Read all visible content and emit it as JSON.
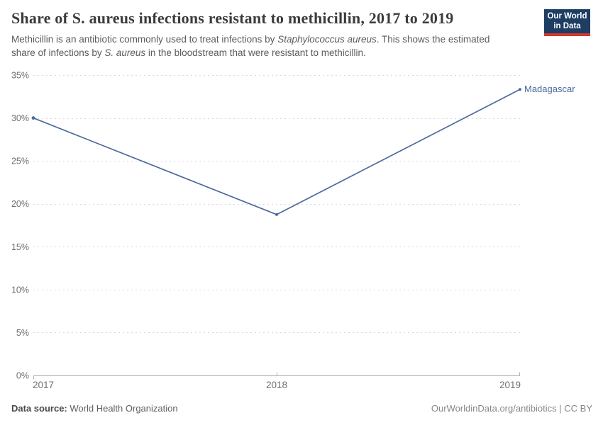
{
  "header": {
    "title": "Share of S. aureus infections resistant to methicillin, 2017 to 2019",
    "subtitle": {
      "part1": "Methicillin is an antibiotic commonly used to treat infections by ",
      "italic1": "Staphylococcus aureus",
      "part2": ". This shows the estimated share of infections by ",
      "italic2": "S. aureus",
      "part3": " in the bloodstream that were resistant to methicillin."
    },
    "logo": {
      "line1": "Our World",
      "line2": "in Data"
    }
  },
  "chart_data": {
    "type": "line",
    "title": "Share of S. aureus infections resistant to methicillin, 2017 to 2019",
    "x": [
      2017,
      2018,
      2019
    ],
    "xtick_labels": [
      "2017",
      "2018",
      "2019"
    ],
    "series": [
      {
        "name": "Madagascar",
        "color": "#4c6a9c",
        "values": [
          30,
          18.75,
          33.33
        ]
      }
    ],
    "xlabel": "",
    "ylabel": "",
    "ylim": [
      0,
      35
    ],
    "ytick_step": 5,
    "ytick_labels": [
      "0%",
      "5%",
      "10%",
      "15%",
      "20%",
      "25%",
      "30%",
      "35%"
    ],
    "grid": "horizontal-dashed",
    "legend_position": "end-of-line-label"
  },
  "footer": {
    "source_label": "Data source:",
    "source_value": "World Health Organization",
    "credit": "OurWorldinData.org/antibiotics | CC BY"
  },
  "colors": {
    "line": "#4c6a9c",
    "series_label": "#4c6a9c",
    "grid": "#d9d9d9",
    "axis": "#b3b3b3",
    "title_text": "#3b3b3b",
    "subtitle_text": "#5b5b5b",
    "tick_text": "#6e6e6e",
    "footer_text": "#5f5f5f",
    "credit_text": "#878787",
    "logo_bg": "#1d3d63",
    "logo_stripe": "#d4372c",
    "logo_text": "#ffffff"
  }
}
